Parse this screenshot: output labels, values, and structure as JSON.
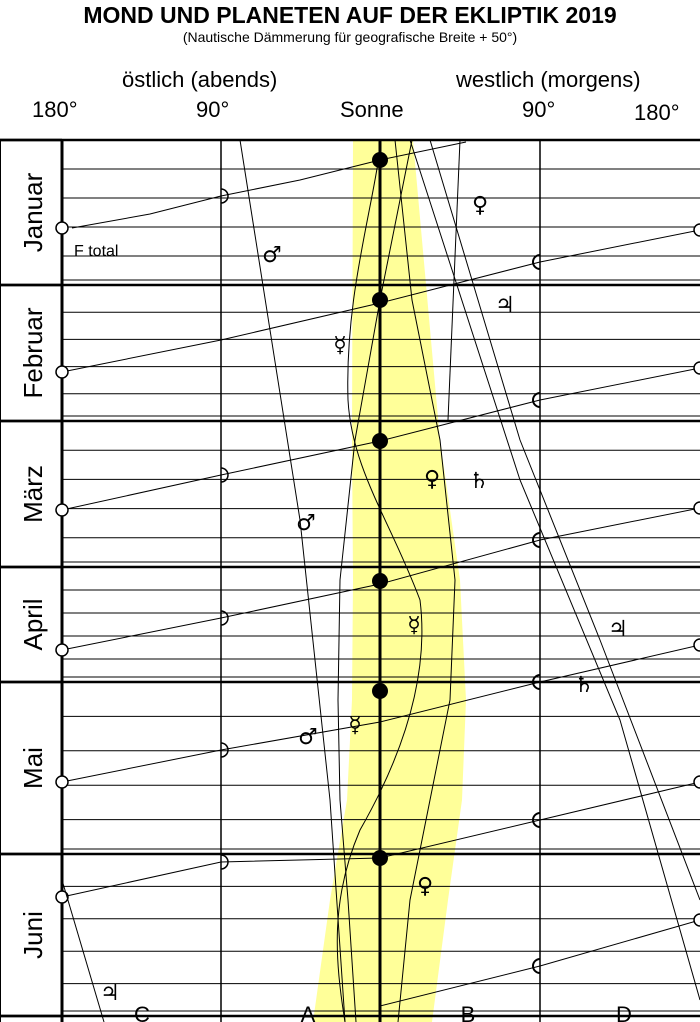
{
  "header": {
    "title": "MOND UND PLANETEN AUF DER EKLIPTIK 2019",
    "subtitle": "(Nautische Dämmerung für geografische Breite + 50°)",
    "east_label": "östlich (abends)",
    "west_label": "westlich (morgens)",
    "sun_label": "Sonne",
    "tick_180_left": "180°",
    "tick_90_left": "90°",
    "tick_90_right": "90°",
    "tick_180_right": "180°"
  },
  "months": [
    "Januar",
    "Februar",
    "März",
    "April",
    "Mai",
    "Juni"
  ],
  "eclipse_label": "F total",
  "zones": [
    "C",
    "A",
    "B",
    "D"
  ],
  "symbols": {
    "venus": "♀",
    "mars": "♂",
    "mercury": "☿",
    "jupiter": "♃",
    "saturn": "♄"
  },
  "colors": {
    "twilight_band": "#ffff99",
    "line": "#000000"
  }
}
